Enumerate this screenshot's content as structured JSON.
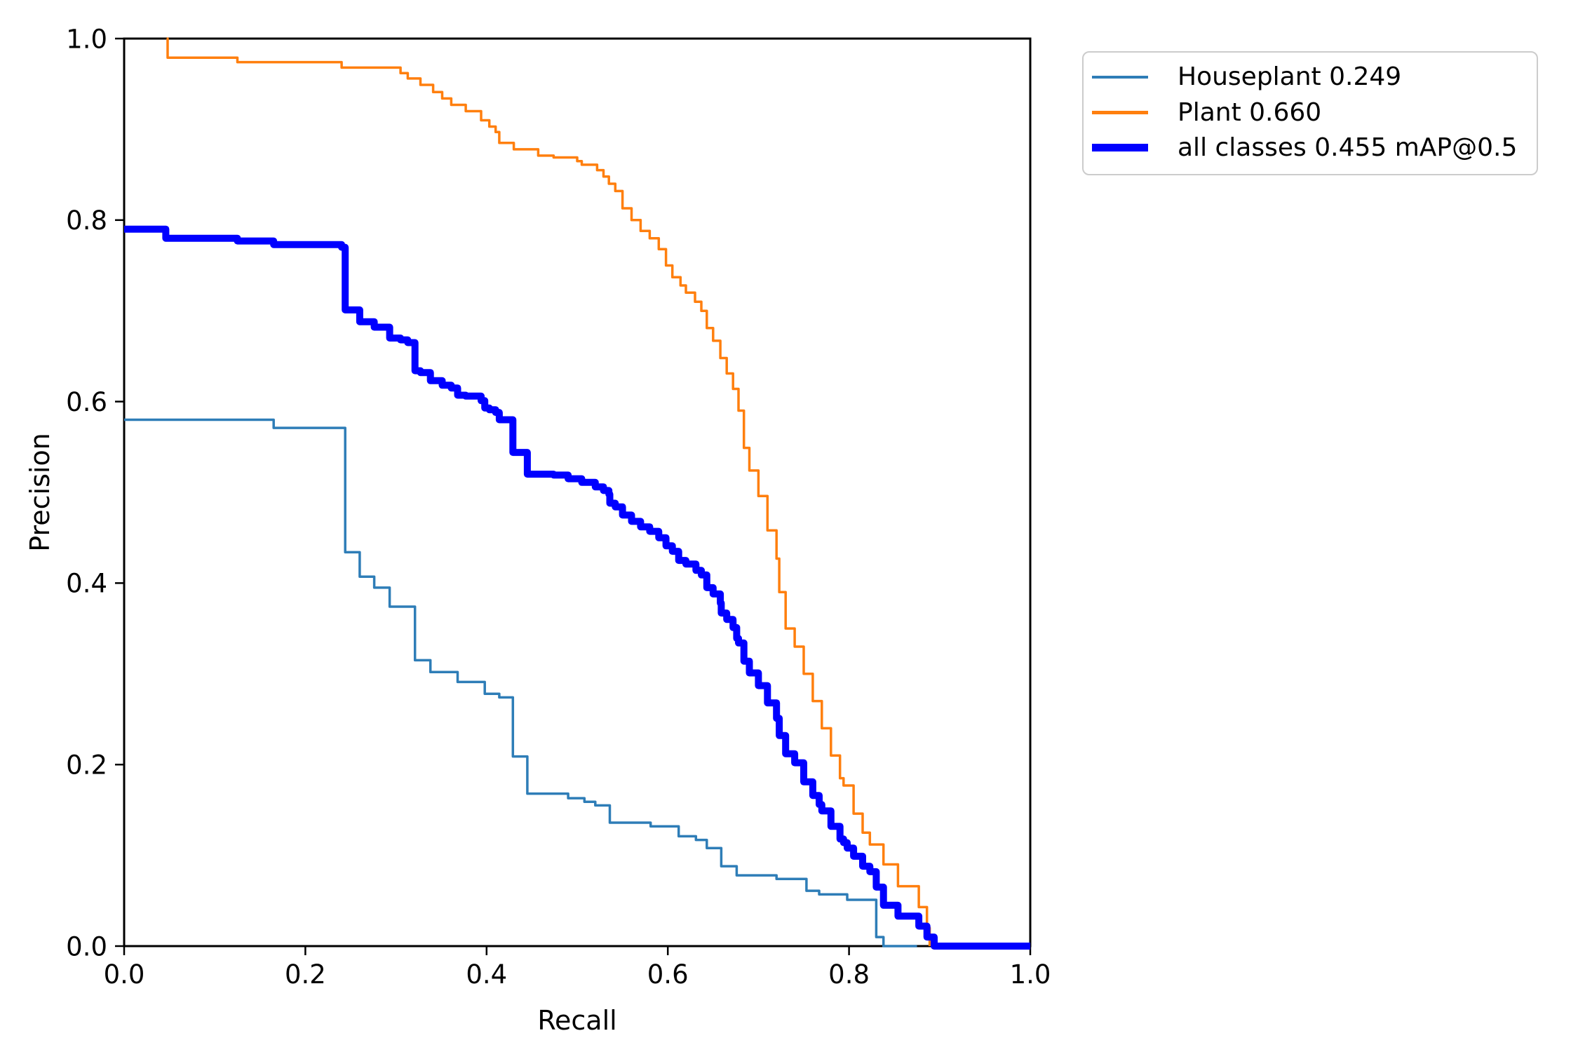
{
  "figure": {
    "background": "#ffffff",
    "text_color": "#000000",
    "spine_color": "#000000",
    "legend_border_color": "#cccccc"
  },
  "chart_data": {
    "type": "line",
    "subtype": "precision-recall-curve",
    "title": "",
    "xlabel": "Recall",
    "ylabel": "Precision",
    "xlim": [
      0.0,
      1.0
    ],
    "ylim": [
      0.0,
      1.0
    ],
    "x_ticks": [
      0.0,
      0.2,
      0.4,
      0.6,
      0.8,
      1.0
    ],
    "y_ticks": [
      0.0,
      0.2,
      0.4,
      0.6,
      0.8,
      1.0
    ],
    "x_tick_labels": [
      "0.0",
      "0.2",
      "0.4",
      "0.6",
      "0.8",
      "1.0"
    ],
    "y_tick_labels": [
      "0.0",
      "0.2",
      "0.4",
      "0.6",
      "0.8",
      "1.0"
    ],
    "grid": false,
    "legend_position": "upper right outside",
    "step_mode": "post",
    "series": [
      {
        "name": "Houseplant",
        "legend_label": "Houseplant 0.249",
        "ap": 0.249,
        "color": "#2e7db7",
        "line_width": 3.5,
        "points": [
          [
            0.0,
            0.58
          ],
          [
            0.165,
            0.571
          ],
          [
            0.244,
            0.434
          ],
          [
            0.26,
            0.407
          ],
          [
            0.276,
            0.395
          ],
          [
            0.293,
            0.374
          ],
          [
            0.321,
            0.315
          ],
          [
            0.338,
            0.302
          ],
          [
            0.368,
            0.291
          ],
          [
            0.398,
            0.278
          ],
          [
            0.414,
            0.274
          ],
          [
            0.429,
            0.209
          ],
          [
            0.445,
            0.168
          ],
          [
            0.49,
            0.163
          ],
          [
            0.508,
            0.159
          ],
          [
            0.52,
            0.155
          ],
          [
            0.536,
            0.136
          ],
          [
            0.581,
            0.132
          ],
          [
            0.612,
            0.121
          ],
          [
            0.631,
            0.117
          ],
          [
            0.643,
            0.108
          ],
          [
            0.659,
            0.088
          ],
          [
            0.676,
            0.078
          ],
          [
            0.72,
            0.074
          ],
          [
            0.753,
            0.061
          ],
          [
            0.767,
            0.057
          ],
          [
            0.798,
            0.051
          ],
          [
            0.83,
            0.01
          ],
          [
            0.838,
            0.0
          ],
          [
            0.875,
            0.0
          ]
        ]
      },
      {
        "name": "Plant",
        "legend_label": "Plant 0.660",
        "ap": 0.66,
        "color": "#ff7f0e",
        "line_width": 3.5,
        "points": [
          [
            0.047,
            1.0
          ],
          [
            0.048,
            0.979
          ],
          [
            0.125,
            0.974
          ],
          [
            0.24,
            0.968
          ],
          [
            0.305,
            0.962
          ],
          [
            0.313,
            0.956
          ],
          [
            0.327,
            0.949
          ],
          [
            0.341,
            0.941
          ],
          [
            0.351,
            0.934
          ],
          [
            0.361,
            0.927
          ],
          [
            0.377,
            0.92
          ],
          [
            0.394,
            0.91
          ],
          [
            0.403,
            0.903
          ],
          [
            0.41,
            0.897
          ],
          [
            0.414,
            0.885
          ],
          [
            0.43,
            0.878
          ],
          [
            0.457,
            0.871
          ],
          [
            0.474,
            0.869
          ],
          [
            0.5,
            0.865
          ],
          [
            0.505,
            0.861
          ],
          [
            0.522,
            0.855
          ],
          [
            0.529,
            0.848
          ],
          [
            0.535,
            0.84
          ],
          [
            0.542,
            0.832
          ],
          [
            0.55,
            0.813
          ],
          [
            0.56,
            0.8
          ],
          [
            0.57,
            0.788
          ],
          [
            0.58,
            0.78
          ],
          [
            0.59,
            0.768
          ],
          [
            0.598,
            0.75
          ],
          [
            0.605,
            0.737
          ],
          [
            0.614,
            0.728
          ],
          [
            0.62,
            0.72
          ],
          [
            0.63,
            0.71
          ],
          [
            0.637,
            0.7
          ],
          [
            0.643,
            0.681
          ],
          [
            0.65,
            0.667
          ],
          [
            0.658,
            0.648
          ],
          [
            0.665,
            0.631
          ],
          [
            0.672,
            0.614
          ],
          [
            0.678,
            0.59
          ],
          [
            0.684,
            0.549
          ],
          [
            0.69,
            0.524
          ],
          [
            0.7,
            0.496
          ],
          [
            0.71,
            0.458
          ],
          [
            0.72,
            0.427
          ],
          [
            0.723,
            0.39
          ],
          [
            0.73,
            0.35
          ],
          [
            0.74,
            0.33
          ],
          [
            0.75,
            0.3
          ],
          [
            0.76,
            0.27
          ],
          [
            0.77,
            0.24
          ],
          [
            0.78,
            0.21
          ],
          [
            0.79,
            0.185
          ],
          [
            0.794,
            0.177
          ],
          [
            0.805,
            0.146
          ],
          [
            0.815,
            0.125
          ],
          [
            0.823,
            0.112
          ],
          [
            0.838,
            0.09
          ],
          [
            0.854,
            0.066
          ],
          [
            0.877,
            0.043
          ],
          [
            0.886,
            0.02
          ],
          [
            0.889,
            0.0
          ]
        ]
      },
      {
        "name": "all classes",
        "legend_label": "all classes 0.455 mAP@0.5",
        "map_at_0_5": 0.455,
        "color": "#0000ff",
        "line_width": 10,
        "points": [
          [
            0.0,
            0.79
          ],
          [
            0.046,
            0.78
          ],
          [
            0.125,
            0.777
          ],
          [
            0.165,
            0.773
          ],
          [
            0.24,
            0.77
          ],
          [
            0.244,
            0.701
          ],
          [
            0.26,
            0.688
          ],
          [
            0.276,
            0.682
          ],
          [
            0.293,
            0.67
          ],
          [
            0.305,
            0.668
          ],
          [
            0.313,
            0.665
          ],
          [
            0.321,
            0.634
          ],
          [
            0.327,
            0.632
          ],
          [
            0.338,
            0.623
          ],
          [
            0.351,
            0.618
          ],
          [
            0.361,
            0.615
          ],
          [
            0.368,
            0.607
          ],
          [
            0.377,
            0.606
          ],
          [
            0.394,
            0.601
          ],
          [
            0.398,
            0.593
          ],
          [
            0.403,
            0.591
          ],
          [
            0.41,
            0.588
          ],
          [
            0.414,
            0.58
          ],
          [
            0.429,
            0.544
          ],
          [
            0.445,
            0.52
          ],
          [
            0.474,
            0.519
          ],
          [
            0.49,
            0.515
          ],
          [
            0.505,
            0.511
          ],
          [
            0.52,
            0.506
          ],
          [
            0.529,
            0.502
          ],
          [
            0.535,
            0.498
          ],
          [
            0.536,
            0.488
          ],
          [
            0.542,
            0.484
          ],
          [
            0.55,
            0.475
          ],
          [
            0.56,
            0.468
          ],
          [
            0.57,
            0.462
          ],
          [
            0.58,
            0.457
          ],
          [
            0.59,
            0.45
          ],
          [
            0.598,
            0.441
          ],
          [
            0.605,
            0.435
          ],
          [
            0.612,
            0.425
          ],
          [
            0.62,
            0.421
          ],
          [
            0.631,
            0.414
          ],
          [
            0.637,
            0.409
          ],
          [
            0.643,
            0.395
          ],
          [
            0.65,
            0.388
          ],
          [
            0.658,
            0.378
          ],
          [
            0.659,
            0.367
          ],
          [
            0.665,
            0.36
          ],
          [
            0.672,
            0.351
          ],
          [
            0.676,
            0.339
          ],
          [
            0.678,
            0.334
          ],
          [
            0.684,
            0.314
          ],
          [
            0.69,
            0.301
          ],
          [
            0.7,
            0.287
          ],
          [
            0.71,
            0.268
          ],
          [
            0.72,
            0.251
          ],
          [
            0.723,
            0.232
          ],
          [
            0.73,
            0.212
          ],
          [
            0.74,
            0.202
          ],
          [
            0.75,
            0.181
          ],
          [
            0.76,
            0.166
          ],
          [
            0.767,
            0.156
          ],
          [
            0.77,
            0.149
          ],
          [
            0.78,
            0.132
          ],
          [
            0.79,
            0.118
          ],
          [
            0.794,
            0.114
          ],
          [
            0.798,
            0.108
          ],
          [
            0.805,
            0.099
          ],
          [
            0.815,
            0.088
          ],
          [
            0.823,
            0.082
          ],
          [
            0.83,
            0.065
          ],
          [
            0.838,
            0.045
          ],
          [
            0.854,
            0.033
          ],
          [
            0.877,
            0.022
          ],
          [
            0.886,
            0.01
          ],
          [
            0.894,
            0.0
          ],
          [
            1.0,
            0.0
          ]
        ]
      }
    ]
  }
}
